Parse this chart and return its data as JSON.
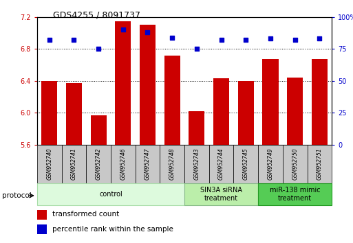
{
  "title": "GDS4255 / 8091737",
  "samples": [
    "GSM952740",
    "GSM952741",
    "GSM952742",
    "GSM952746",
    "GSM952747",
    "GSM952748",
    "GSM952743",
    "GSM952744",
    "GSM952745",
    "GSM952749",
    "GSM952750",
    "GSM952751"
  ],
  "bar_values": [
    6.4,
    6.37,
    5.97,
    7.15,
    7.1,
    6.72,
    6.02,
    6.43,
    6.4,
    6.67,
    6.44,
    6.67
  ],
  "percentile_values": [
    82,
    82,
    75,
    90,
    88,
    84,
    75,
    82,
    82,
    83,
    82,
    83
  ],
  "bar_color": "#cc0000",
  "dot_color": "#0000cc",
  "ylim_left": [
    5.6,
    7.2
  ],
  "ylim_right": [
    0,
    100
  ],
  "yticks_left": [
    5.6,
    6.0,
    6.4,
    6.8,
    7.2
  ],
  "yticks_right": [
    0,
    25,
    50,
    75,
    100
  ],
  "groups": [
    {
      "label": "control",
      "start": 0,
      "end": 6,
      "color": "#ddfadd",
      "border": "#aaddaa"
    },
    {
      "label": "SIN3A siRNA\ntreatment",
      "start": 6,
      "end": 9,
      "color": "#bbeeaa",
      "border": "#88bb88"
    },
    {
      "label": "miR-138 mimic\ntreatment",
      "start": 9,
      "end": 12,
      "color": "#55cc55",
      "border": "#229922"
    }
  ],
  "protocol_label": "protocol",
  "legend_items": [
    {
      "color": "#cc0000",
      "label": "transformed count"
    },
    {
      "color": "#0000cc",
      "label": "percentile rank within the sample"
    }
  ],
  "bar_bottom": 5.6,
  "grid_yticks": [
    6.0,
    6.4,
    6.8
  ]
}
